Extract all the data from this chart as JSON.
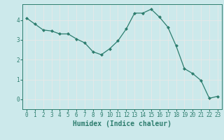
{
  "x": [
    0,
    1,
    2,
    3,
    4,
    5,
    6,
    7,
    8,
    9,
    10,
    11,
    12,
    13,
    14,
    15,
    16,
    17,
    18,
    19,
    20,
    21,
    22,
    23
  ],
  "y": [
    4.1,
    3.8,
    3.5,
    3.45,
    3.3,
    3.3,
    3.05,
    2.85,
    2.4,
    2.25,
    2.55,
    2.95,
    3.55,
    4.35,
    4.35,
    4.55,
    4.15,
    3.65,
    2.7,
    1.55,
    1.3,
    0.95,
    0.05,
    0.15
  ],
  "xlabel": "Humidex (Indice chaleur)",
  "ylabel": "",
  "xlim": [
    -0.5,
    23.5
  ],
  "ylim": [
    -0.5,
    4.8
  ],
  "bg_color": "#cce9eb",
  "line_color": "#2d7d6e",
  "marker_color": "#2d7d6e",
  "grid_color": "#e8e8e8",
  "yticks": [
    0,
    1,
    2,
    3,
    4
  ],
  "xticks": [
    0,
    1,
    2,
    3,
    4,
    5,
    6,
    7,
    8,
    9,
    10,
    11,
    12,
    13,
    14,
    15,
    16,
    17,
    18,
    19,
    20,
    21,
    22,
    23
  ],
  "xtick_labels": [
    "0",
    "1",
    "2",
    "3",
    "4",
    "5",
    "6",
    "7",
    "8",
    "9",
    "10",
    "11",
    "12",
    "13",
    "14",
    "15",
    "16",
    "17",
    "18",
    "19",
    "20",
    "21",
    "22",
    "23"
  ],
  "tick_fontsize": 5.5,
  "label_fontsize": 7.0
}
